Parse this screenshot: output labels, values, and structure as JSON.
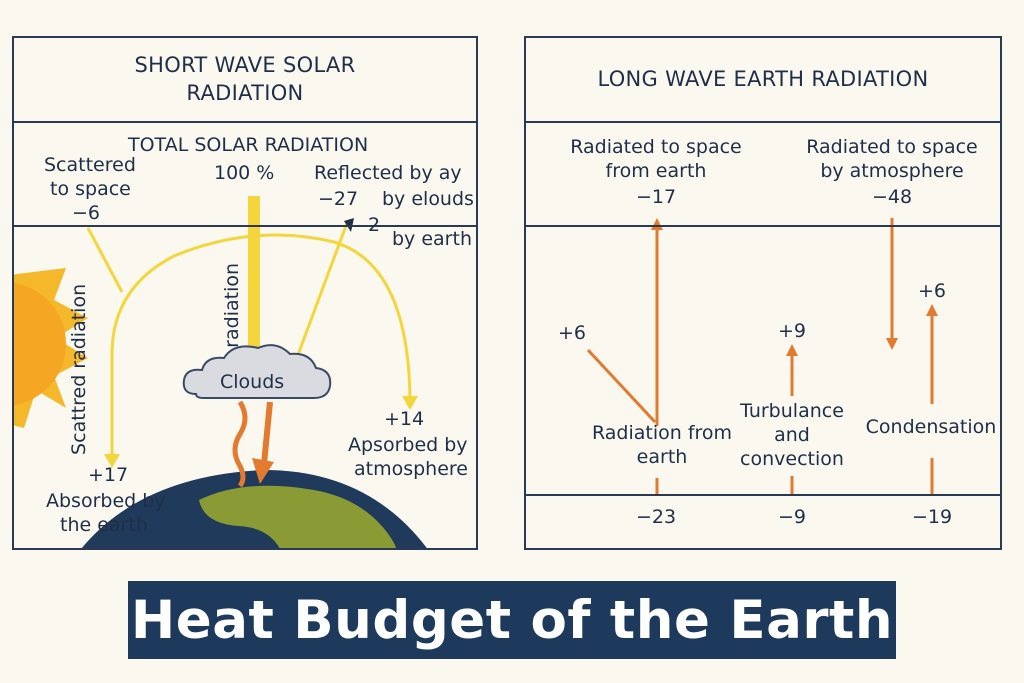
{
  "title": "Heat Budget of the Earth",
  "colors": {
    "border": "#2a3a55",
    "text": "#1f2f4a",
    "shortwave_arrow": "#f4d63c",
    "longwave_arrow": "#e27a30",
    "sun": "#f5b82a",
    "earth_ocean": "#1f3a5a",
    "earth_land": "#8a9a35",
    "cloud": "#d9dbe0",
    "banner_bg": "#1d3a5c"
  },
  "short_wave": {
    "title": "SHORT WAVE SOLAR RADIATION",
    "total_label": "TOTAL SOLAR RADIATION",
    "total_value": "100 %",
    "scattered_to_space": {
      "label_line1": "Scattered",
      "label_line2": "to space",
      "value": "−6"
    },
    "reflected": {
      "label": "Reflected by ay",
      "value": "−27",
      "clouds_text": "by elouds",
      "earth_value": "2",
      "earth_text": "by earth"
    },
    "scattered_radiation_label": "Scattred radiation",
    "radiation_label": "radiation",
    "clouds_label": "Clouds",
    "absorbed_atmosphere": {
      "value": "+14",
      "label_line1": "Apsorbed by",
      "label_line2": "atmosphere"
    },
    "absorbed_earth": {
      "value": "+17",
      "label_line1": "Absorbed by",
      "label_line2": "the earth"
    }
  },
  "long_wave": {
    "title": "LONG WAVE EARTH RADIATION",
    "radiated_from_earth": {
      "label_line1": "Radiated to space",
      "label_line2": "from earth",
      "value": "−17"
    },
    "radiated_by_atmosphere": {
      "label_line1": "Radiated to space",
      "label_line2": "by atmosphere",
      "value": "−48"
    },
    "radiation_from_earth": {
      "value": "+6",
      "label_line1": "Radiation  from",
      "label_line2": "earth",
      "bottom_value": "−23"
    },
    "turbulence": {
      "value": "+9",
      "label_line1": "Turbulance",
      "label_line2": "and",
      "label_line3": "convection",
      "bottom_value": "−9"
    },
    "condensation": {
      "value": "+6",
      "label": "Condensation",
      "bottom_value": "−19"
    }
  }
}
